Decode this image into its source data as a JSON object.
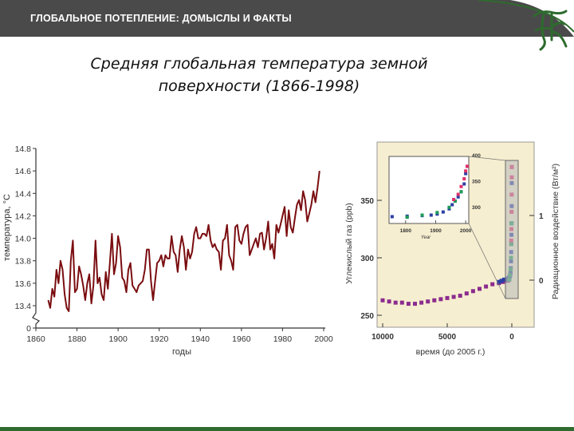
{
  "header": {
    "title": "ГЛОБАЛЬНОЕ ПОТЕПЛЕНИЕ: ДОМЫСЛЫ И ФАКТЫ"
  },
  "slide": {
    "title": "Средняя глобальная температура земной поверхности (1866-1998)"
  },
  "colors": {
    "header_bg": "#4a4a4a",
    "accent_green": "#2e6b2e",
    "temp_line": "#7a0d10",
    "inset_bg": "#f6eed0"
  },
  "logo": {
    "icon": "monogram-logo-icon"
  },
  "chart_data": [
    {
      "type": "line",
      "title": "Средняя глобальная температура земной поверхности (1866-1998)",
      "xlabel": "годы",
      "ylabel": "температура, °С",
      "x_ticks": [
        "1860",
        "1880",
        "1900",
        "1920",
        "1940",
        "1960",
        "1980",
        "2000"
      ],
      "y_ticks": [
        "0",
        "13.4",
        "13.6",
        "13.8",
        "14.0",
        "14.2",
        "14.4",
        "14.6",
        "14.8"
      ],
      "xlim": [
        1860,
        2000
      ],
      "ylim": [
        13.4,
        14.8
      ],
      "axis_break": true,
      "grid": false,
      "series": [
        {
          "x": [
            1866,
            1867,
            1868,
            1869,
            1870,
            1871,
            1872,
            1873,
            1874,
            1875,
            1876,
            1877,
            1878,
            1879,
            1880,
            1881,
            1882,
            1883,
            1884,
            1885,
            1886,
            1887,
            1888,
            1889,
            1890,
            1891,
            1892,
            1893,
            1894,
            1895,
            1896,
            1897,
            1898,
            1899,
            1900,
            1901,
            1902,
            1903,
            1904,
            1905,
            1906,
            1907,
            1908,
            1909,
            1910,
            1911,
            1912,
            1913,
            1914,
            1915,
            1916,
            1917,
            1918,
            1919,
            1920,
            1921,
            1922,
            1923,
            1924,
            1925,
            1926,
            1927,
            1928,
            1929,
            1930,
            1931,
            1932,
            1933,
            1934,
            1935,
            1936,
            1937,
            1938,
            1939,
            1940,
            1941,
            1942,
            1943,
            1944,
            1945,
            1946,
            1947,
            1948,
            1949,
            1950,
            1951,
            1952,
            1953,
            1954,
            1955,
            1956,
            1957,
            1958,
            1959,
            1960,
            1961,
            1962,
            1963,
            1964,
            1965,
            1966,
            1967,
            1968,
            1969,
            1970,
            1971,
            1972,
            1973,
            1974,
            1975,
            1976,
            1977,
            1978,
            1979,
            1980,
            1981,
            1982,
            1983,
            1984,
            1985,
            1986,
            1987,
            1988,
            1989,
            1990,
            1991,
            1992,
            1993,
            1994,
            1995,
            1996,
            1997,
            1998
          ],
          "values": [
            13.45,
            13.38,
            13.55,
            13.48,
            13.72,
            13.6,
            13.8,
            13.72,
            13.5,
            13.38,
            13.35,
            13.8,
            13.98,
            13.52,
            13.55,
            13.75,
            13.68,
            13.58,
            13.45,
            13.6,
            13.68,
            13.42,
            13.58,
            13.98,
            13.6,
            13.65,
            13.5,
            13.45,
            13.7,
            13.55,
            13.78,
            14.04,
            13.68,
            13.78,
            14.02,
            13.92,
            13.65,
            13.62,
            13.52,
            13.72,
            13.78,
            13.58,
            13.55,
            13.52,
            13.58,
            13.6,
            13.62,
            13.72,
            13.9,
            13.9,
            13.62,
            13.45,
            13.62,
            13.78,
            13.8,
            13.85,
            13.75,
            13.85,
            13.82,
            13.82,
            14.02,
            13.88,
            13.85,
            13.7,
            13.9,
            14.02,
            13.92,
            13.72,
            13.9,
            13.82,
            13.88,
            14.04,
            14.1,
            14.0,
            14.0,
            14.04,
            14.04,
            14.02,
            14.12,
            13.98,
            13.92,
            13.95,
            13.9,
            13.88,
            13.72,
            13.98,
            14.0,
            14.12,
            13.85,
            13.8,
            13.72,
            14.1,
            14.12,
            13.98,
            13.95,
            14.04,
            14.1,
            14.12,
            13.85,
            13.9,
            13.95,
            14.0,
            13.92,
            14.04,
            14.05,
            13.9,
            14.0,
            14.15,
            13.9,
            13.95,
            13.82,
            14.12,
            14.05,
            14.12,
            14.2,
            14.28,
            14.02,
            14.25,
            14.1,
            14.05,
            14.18,
            14.3,
            14.34,
            14.25,
            14.42,
            14.34,
            14.15,
            14.22,
            14.3,
            14.42,
            14.32,
            14.45,
            14.6
          ]
        }
      ]
    },
    {
      "type": "scatter",
      "xlabel": "время (до 2005 г.)",
      "ylabel": "Углекислый газ (ppb)",
      "ylabel_right": "Радиационное воздействие (Вт/м²)",
      "x_ticks": [
        "10000",
        "5000",
        "0"
      ],
      "y_ticks": [
        "250",
        "300",
        "350"
      ],
      "y_ticks_right": [
        "0",
        "1"
      ],
      "xlim": [
        10000,
        0
      ],
      "ylim": [
        250,
        400
      ],
      "inset": {
        "xlabel": "Year",
        "x_ticks": [
          "1800",
          "1900",
          "2000"
        ],
        "y_ticks": [
          "300",
          "350",
          "400"
        ]
      },
      "series": [
        {
          "name": "",
          "color": "#8b2c8e",
          "x": [
            10000,
            9500,
            9000,
            8500,
            8000,
            7500,
            7000,
            6500,
            6000,
            5500,
            5000,
            4500,
            4000,
            3500,
            3000,
            2500,
            2000,
            1500,
            1000,
            700,
            500,
            300,
            200
          ],
          "values": [
            263,
            262,
            261,
            261,
            260,
            260,
            261,
            262,
            263,
            264,
            265,
            266,
            267,
            269,
            271,
            273,
            275,
            277,
            278,
            279,
            280,
            280,
            281
          ]
        },
        {
          "name": "",
          "color": "#2b3fa6",
          "x": [
            1000,
            800,
            600,
            400,
            300,
            250,
            200,
            150,
            120,
            100,
            80,
            60,
            50,
            40,
            30,
            20,
            10,
            5,
            0
          ],
          "values": [
            279,
            280,
            281,
            281,
            282,
            282,
            283,
            284,
            285,
            287,
            291,
            297,
            305,
            312,
            320,
            330,
            345,
            365,
            379
          ]
        },
        {
          "name": "",
          "color": "#1f9c57",
          "x": [
            200,
            150,
            100,
            60,
            40,
            20
          ],
          "values": [
            281,
            285,
            290,
            300,
            312,
            330
          ]
        },
        {
          "name": "",
          "color": "#e0306a",
          "x": [
            45,
            30,
            20,
            10,
            5,
            0
          ],
          "values": [
            315,
            325,
            340,
            355,
            370,
            379
          ]
        }
      ]
    }
  ]
}
